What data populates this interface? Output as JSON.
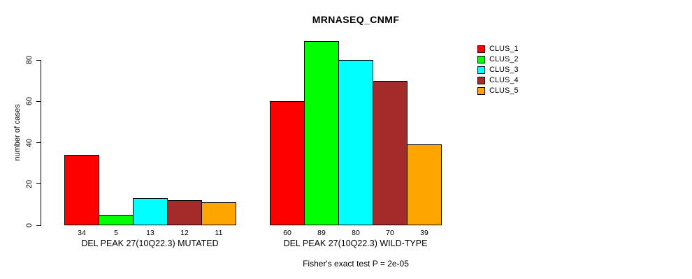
{
  "title": "MRNASEQ_CNMF",
  "y_axis": {
    "label": "number of cases"
  },
  "footer_note": "Fisher's exact test P = 2e-05",
  "legend": {
    "items": [
      {
        "label": "CLUS_1",
        "color": "#FF0000"
      },
      {
        "label": "CLUS_2",
        "color": "#00FF00"
      },
      {
        "label": "CLUS_3",
        "color": "#00FFFF"
      },
      {
        "label": "CLUS_4",
        "color": "#A52A2A"
      },
      {
        "label": "CLUS_5",
        "color": "#FFA500"
      }
    ]
  },
  "chart_data": {
    "type": "bar",
    "title": "MRNASEQ_CNMF",
    "ylabel": "number of cases",
    "xlabel": "",
    "categories": [
      "DEL PEAK 27(10Q22.3) MUTATED",
      "DEL PEAK 27(10Q22.3) WILD-TYPE"
    ],
    "series": [
      {
        "name": "CLUS_1",
        "color": "#FF0000",
        "values": [
          34,
          60
        ]
      },
      {
        "name": "CLUS_2",
        "color": "#00FF00",
        "values": [
          5,
          89
        ]
      },
      {
        "name": "CLUS_3",
        "color": "#00FFFF",
        "values": [
          13,
          80
        ]
      },
      {
        "name": "CLUS_4",
        "color": "#A52A2A",
        "values": [
          12,
          70
        ]
      },
      {
        "name": "CLUS_5",
        "color": "#FFA500",
        "values": [
          11,
          39
        ]
      }
    ],
    "bar_value_labels": [
      [
        34,
        5,
        13,
        12,
        11
      ],
      [
        60,
        89,
        80,
        70,
        39
      ]
    ],
    "yticks": [
      0,
      20,
      40,
      60,
      80
    ],
    "ylim": [
      0,
      89
    ],
    "grid": false,
    "legend_position": "right",
    "annotation": "Fisher's exact test P = 2e-05"
  }
}
